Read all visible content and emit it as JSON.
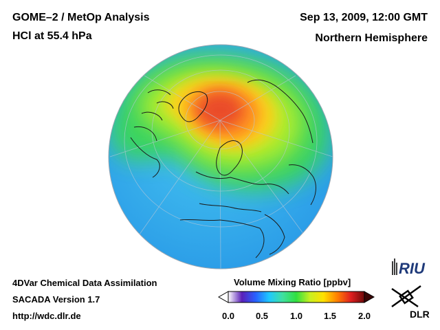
{
  "header": {
    "title": "GOME–2 / MetOp Analysis",
    "subtitle": "HCl at 55.4 hPa",
    "date": "Sep 13, 2009, 12:00 GMT",
    "region": "Northern Hemisphere"
  },
  "footer": {
    "line1": "4DVar Chemical Data Assimilation",
    "line2": "SACADA Version 1.7",
    "line3": "http://wdc.dlr.de"
  },
  "colorbar": {
    "title": "Volume Mixing Ratio [ppbv]",
    "ticks": [
      "0.0",
      "0.5",
      "1.0",
      "1.5",
      "2.0"
    ],
    "range": [
      0.0,
      2.0
    ],
    "colors": [
      "#ffffff",
      "#5a1fb8",
      "#2860ff",
      "#1ec8ff",
      "#40e0a0",
      "#30e040",
      "#c8f020",
      "#ffe000",
      "#ff8000",
      "#e02020",
      "#6e0a0a"
    ]
  },
  "logos": {
    "riu": "RIU",
    "dlr": "DLR"
  }
}
